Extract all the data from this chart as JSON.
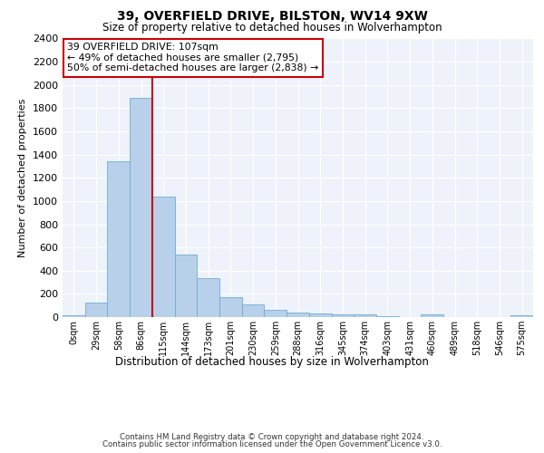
{
  "title1": "39, OVERFIELD DRIVE, BILSTON, WV14 9XW",
  "title2": "Size of property relative to detached houses in Wolverhampton",
  "xlabel": "Distribution of detached houses by size in Wolverhampton",
  "ylabel": "Number of detached properties",
  "footer_line1": "Contains HM Land Registry data © Crown copyright and database right 2024.",
  "footer_line2": "Contains public sector information licensed under the Open Government Licence v3.0.",
  "bin_labels": [
    "0sqm",
    "29sqm",
    "58sqm",
    "86sqm",
    "115sqm",
    "144sqm",
    "173sqm",
    "201sqm",
    "230sqm",
    "259sqm",
    "288sqm",
    "316sqm",
    "345sqm",
    "374sqm",
    "403sqm",
    "431sqm",
    "460sqm",
    "489sqm",
    "518sqm",
    "546sqm",
    "575sqm"
  ],
  "bar_values": [
    15,
    125,
    1345,
    1890,
    1040,
    540,
    335,
    170,
    110,
    60,
    40,
    30,
    25,
    20,
    10,
    0,
    20,
    0,
    0,
    0,
    15
  ],
  "bar_color": "#b8d0ea",
  "bar_edge_color": "#6aaed6",
  "vline_x_index": 3,
  "vline_color": "#cc0000",
  "annotation_line1": "39 OVERFIELD DRIVE: 107sqm",
  "annotation_line2": "← 49% of detached houses are smaller (2,795)",
  "annotation_line3": "50% of semi-detached houses are larger (2,838) →",
  "annotation_box_color": "#cc0000",
  "ylim": [
    0,
    2400
  ],
  "yticks": [
    0,
    200,
    400,
    600,
    800,
    1000,
    1200,
    1400,
    1600,
    1800,
    2000,
    2200,
    2400
  ],
  "background_color": "#edf2fb",
  "grid_color": "#ffffff",
  "fig_width": 6.0,
  "fig_height": 5.0,
  "dpi": 100
}
